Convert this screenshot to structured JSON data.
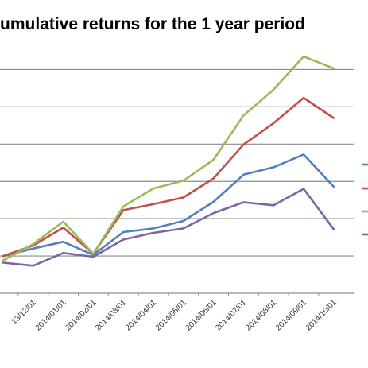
{
  "chart_data": {
    "type": "line",
    "title": "umulative returns for the 1 year period",
    "x_tick_labels": [
      "13/12/01",
      "2014/01/01",
      "2014/02/01",
      "2014/03/01",
      "2014/04/01",
      "2014/05/01",
      "2014/06/01",
      "2014/07/01",
      "2014/08/01",
      "2014/09/01",
      "2014/10/01"
    ],
    "grid": true,
    "legend_position": "right (cropped)",
    "series": [
      {
        "color": "#4f81bd",
        "values": [
          0,
          20,
          38,
          3,
          64,
          74,
          94,
          145,
          218,
          238,
          272,
          186
        ]
      },
      {
        "color": "#c0504d",
        "values": [
          0,
          28,
          76,
          6,
          123,
          139,
          157,
          208,
          299,
          356,
          424,
          370
        ]
      },
      {
        "color": "#9bbb59",
        "values": [
          -12,
          32,
          92,
          6,
          133,
          181,
          202,
          258,
          377,
          446,
          535,
          503
        ]
      },
      {
        "color": "#8064a2",
        "values": [
          -18,
          -26,
          8,
          -2,
          44,
          62,
          74,
          115,
          144,
          136,
          180,
          72
        ]
      }
    ],
    "y_range": [
      -100,
      550
    ]
  }
}
